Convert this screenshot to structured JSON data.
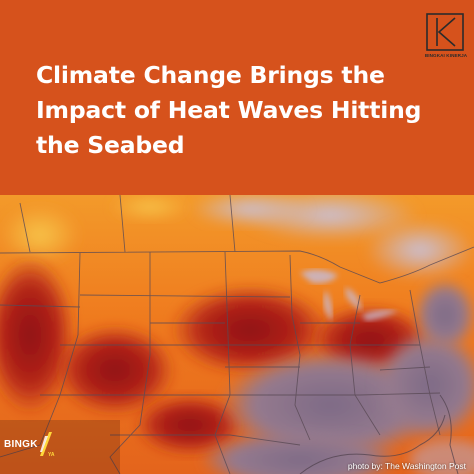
{
  "headline": "Climate Change Brings the Impact of Heat Waves Hitting the Seabed",
  "logo_top": {
    "text": "BINGKAI KINERJA",
    "icon": "bingkai-kinerja-logo-icon"
  },
  "logo_bottom": {
    "name": "BINGK",
    "line1": "",
    "line2": "YA",
    "icon": "bingkai-kinerja-slash-icon"
  },
  "credit": "photo by: The Washington Post",
  "colors": {
    "header_bg": "#d6521c",
    "headline_text": "#ffffff",
    "heat_orange": "#f0811e",
    "heat_red": "#a92018",
    "cool_purple": "#8f6f8a"
  }
}
